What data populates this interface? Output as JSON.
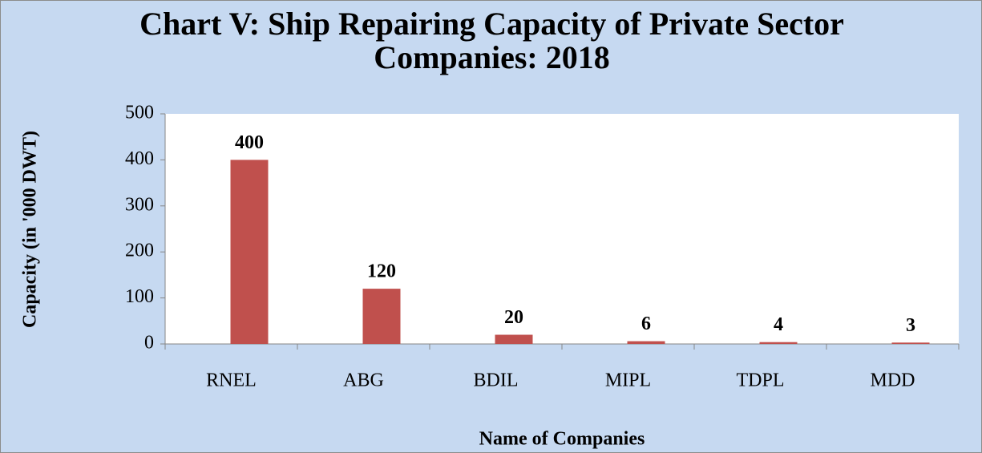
{
  "chart_data": {
    "type": "bar",
    "title": "Chart V: Ship Repairing Capacity of Private Sector Companies: 2018",
    "xlabel": "Name of Companies",
    "ylabel": "Capacity (in '000 DWT)",
    "categories": [
      "RNEL",
      "ABG",
      "BDIL",
      "MIPL",
      "TDPL",
      "MDD"
    ],
    "values": [
      400,
      120,
      20,
      6,
      4,
      3
    ],
    "color": "#c0504d",
    "ylim": [
      0,
      500
    ],
    "yticks": [
      0,
      100,
      200,
      300,
      400,
      500
    ],
    "grid": false,
    "value_labels_shown": true
  }
}
